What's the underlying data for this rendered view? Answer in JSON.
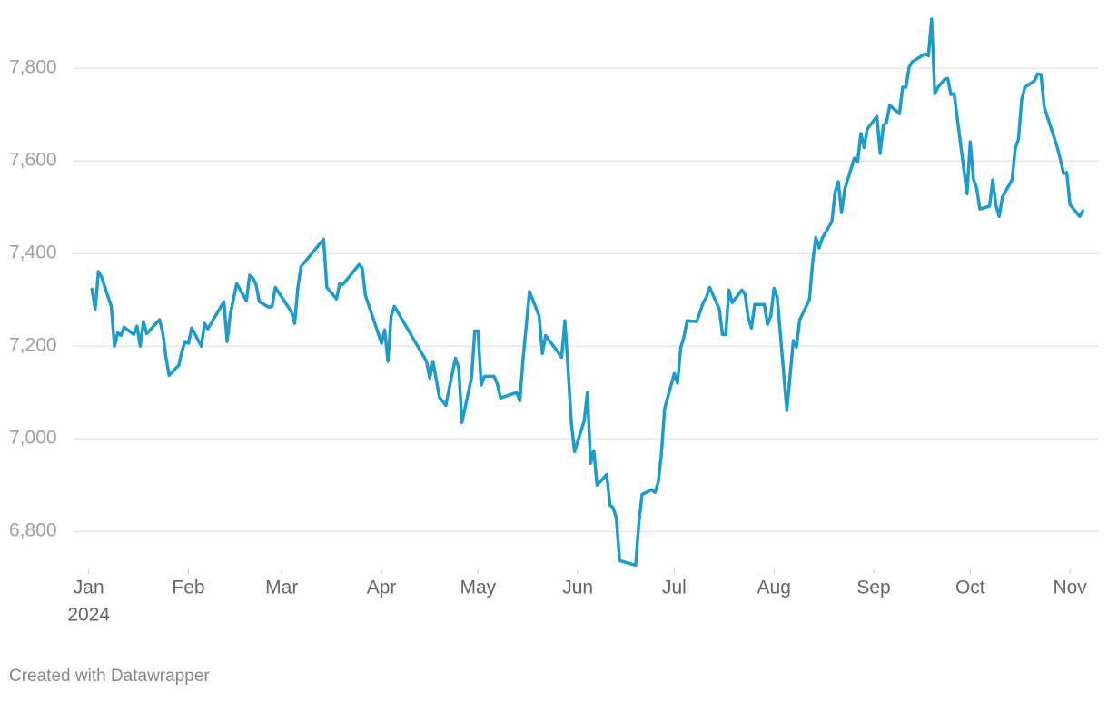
{
  "chart_data": {
    "type": "line",
    "color": "#1d9ccc",
    "grid": true,
    "credit": "Created with Datawrapper",
    "year": "2024",
    "xlim": [
      -5,
      314
    ],
    "xticks": [
      {
        "value": 0,
        "label": "Jan"
      },
      {
        "value": 31,
        "label": "Feb"
      },
      {
        "value": 60,
        "label": "Mar"
      },
      {
        "value": 91,
        "label": "Apr"
      },
      {
        "value": 121,
        "label": "May"
      },
      {
        "value": 152,
        "label": "Jun"
      },
      {
        "value": 182,
        "label": "Jul"
      },
      {
        "value": 213,
        "label": "Aug"
      },
      {
        "value": 244,
        "label": "Sep"
      },
      {
        "value": 274,
        "label": "Oct"
      },
      {
        "value": 305,
        "label": "Nov"
      }
    ],
    "ylim": [
      6720,
      7910
    ],
    "yticks": [
      {
        "value": 6800,
        "label": "6,800"
      },
      {
        "value": 7000,
        "label": "7,000"
      },
      {
        "value": 7200,
        "label": "7,200"
      },
      {
        "value": 7400,
        "label": "7,400"
      },
      {
        "value": 7600,
        "label": "7,600"
      },
      {
        "value": 7800,
        "label": "7,800"
      }
    ],
    "x": [
      1,
      2,
      3,
      4,
      7,
      8,
      9,
      10,
      11,
      14,
      15,
      16,
      17,
      18,
      22,
      23,
      24,
      25,
      28,
      29,
      30,
      31,
      32,
      35,
      36,
      37,
      42,
      43,
      44,
      46,
      49,
      50,
      51,
      52,
      53,
      56,
      57,
      58,
      59,
      60,
      63,
      64,
      65,
      66,
      73,
      74,
      77,
      78,
      79,
      84,
      85,
      86,
      91,
      92,
      93,
      94,
      95,
      105,
      106,
      107,
      109,
      111,
      112,
      114,
      115,
      116,
      119,
      120,
      121,
      122,
      123,
      126,
      127,
      128,
      133,
      134,
      135,
      137,
      140,
      141,
      142,
      147,
      148,
      149,
      150,
      151,
      154,
      155,
      156,
      157,
      158,
      161,
      162,
      163,
      164,
      165,
      170,
      171,
      172,
      175,
      176,
      177,
      178,
      179,
      182,
      183,
      184,
      185,
      186,
      189,
      191,
      192,
      193,
      196,
      197,
      198,
      199,
      200,
      203,
      204,
      205,
      206,
      207,
      210,
      211,
      212,
      213,
      214,
      217,
      219,
      220,
      221,
      224,
      225,
      226,
      227,
      228,
      231,
      232,
      233,
      234,
      235,
      238,
      239,
      240,
      241,
      242,
      245,
      246,
      247,
      248,
      249,
      252,
      253,
      254,
      255,
      256,
      260,
      261,
      262,
      263,
      264,
      266,
      267,
      268,
      269,
      273,
      274,
      275,
      276,
      277,
      280,
      281,
      282,
      283,
      284,
      287,
      288,
      289,
      290,
      291,
      294,
      295,
      296,
      297,
      301,
      302,
      303,
      304,
      305,
      308,
      309
    ],
    "values": [
      7323,
      7280,
      7361,
      7349,
      7286,
      7200,
      7229,
      7223,
      7241,
      7225,
      7243,
      7200,
      7253,
      7227,
      7257,
      7229,
      7176,
      7137,
      7159,
      7190,
      7210,
      7206,
      7239,
      7200,
      7249,
      7237,
      7296,
      7210,
      7269,
      7335,
      7298,
      7353,
      7347,
      7333,
      7296,
      7284,
      7286,
      7327,
      7316,
      7306,
      7274,
      7249,
      7327,
      7372,
      7431,
      7327,
      7302,
      7335,
      7333,
      7376,
      7369,
      7310,
      7206,
      7235,
      7167,
      7265,
      7286,
      7167,
      7131,
      7167,
      7090,
      7072,
      7108,
      7174,
      7153,
      7035,
      7133,
      7233,
      7233,
      7116,
      7135,
      7135,
      7118,
      7088,
      7100,
      7082,
      7172,
      7318,
      7265,
      7184,
      7223,
      7176,
      7255,
      7149,
      7035,
      6972,
      7039,
      7100,
      6947,
      6974,
      6900,
      6923,
      6857,
      6851,
      6829,
      6737,
      6727,
      6819,
      6880,
      6890,
      6884,
      6906,
      6967,
      7065,
      7141,
      7120,
      7196,
      7220,
      7255,
      7253,
      7294,
      7306,
      7327,
      7280,
      7225,
      7225,
      7321,
      7294,
      7321,
      7312,
      7261,
      7239,
      7290,
      7290,
      7247,
      7265,
      7325,
      7306,
      7061,
      7212,
      7198,
      7257,
      7300,
      7380,
      7435,
      7412,
      7433,
      7469,
      7533,
      7555,
      7488,
      7539,
      7606,
      7598,
      7659,
      7629,
      7669,
      7696,
      7616,
      7676,
      7684,
      7720,
      7702,
      7759,
      7759,
      7802,
      7814,
      7831,
      7827,
      7906,
      7745,
      7759,
      7776,
      7778,
      7743,
      7745,
      7529,
      7641,
      7561,
      7541,
      7496,
      7502,
      7559,
      7504,
      7480,
      7522,
      7559,
      7627,
      7647,
      7733,
      7759,
      7773,
      7788,
      7786,
      7716,
      7631,
      7604,
      7573,
      7575,
      7506,
      7480,
      7492
    ]
  }
}
